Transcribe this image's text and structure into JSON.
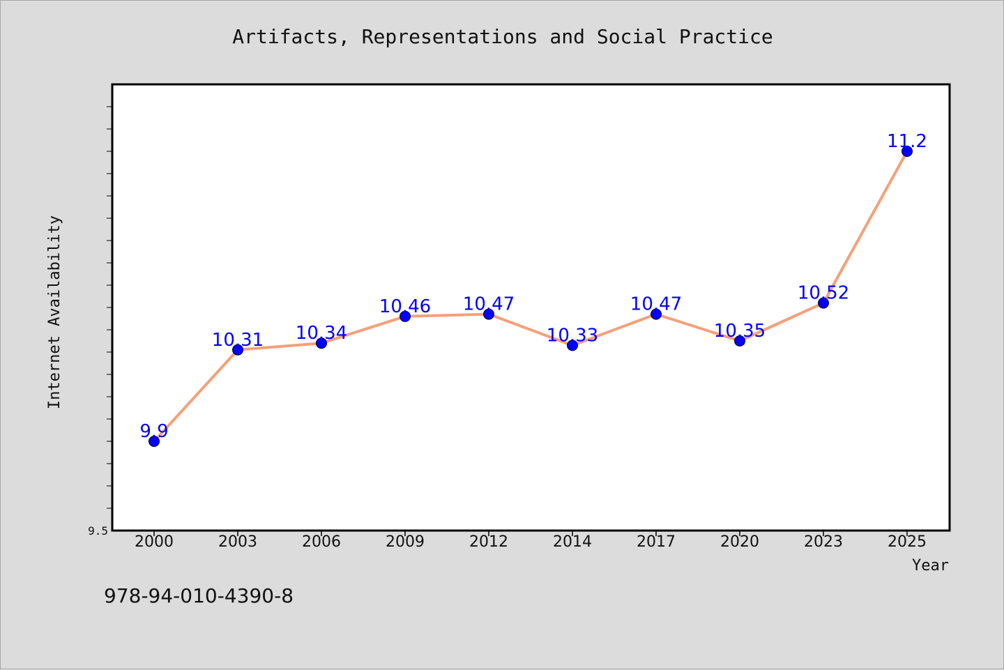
{
  "chart_data": {
    "type": "line",
    "title": "Artifacts, Representations and Social Practice",
    "xlabel": "Year",
    "ylabel": "Internet Availability",
    "categories": [
      "2000",
      "2003",
      "2006",
      "2009",
      "2012",
      "2014",
      "2017",
      "2020",
      "2023",
      "2025"
    ],
    "series": [
      {
        "values": [
          9.9,
          10.31,
          10.34,
          10.46,
          10.47,
          10.33,
          10.47,
          10.35,
          10.52,
          11.2
        ],
        "data_labels": [
          "9.9",
          "10.31",
          "10.34",
          "10.46",
          "10.47",
          "10.33",
          "10.47",
          "10.35",
          "10.52",
          "11.2"
        ]
      }
    ],
    "ylim": [
      9.5,
      11.5
    ],
    "y_tick_labels": [
      "9.5"
    ],
    "grid": false,
    "legend": "none",
    "colors": {
      "line": "#f5a07a",
      "marker": "#0000ff",
      "data_label": "#0000ff",
      "background": "#dcdcdc",
      "plot_background": "#ffffff"
    }
  },
  "footer": {
    "isbn": "978-94-010-4390-8"
  }
}
